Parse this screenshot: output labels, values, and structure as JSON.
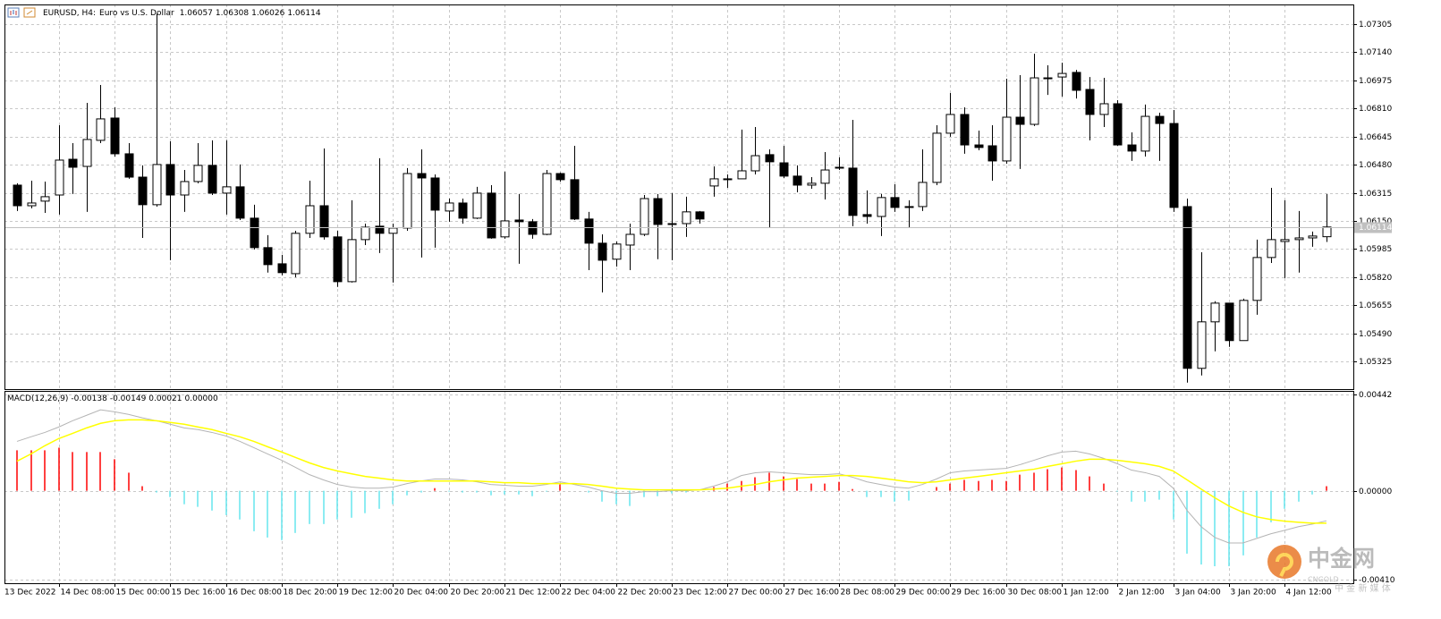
{
  "header": {
    "symbol": "EURUSD, H4:",
    "description": "Euro vs U.S. Dollar"
  },
  "chart_data": [
    {
      "type": "candlestick",
      "start_label": "13 Dec 2022",
      "categories": [
        null,
        null,
        null,
        "14 Dec 08:00",
        null,
        null,
        null,
        "15 Dec 00:00",
        null,
        null,
        null,
        "15 Dec 16:00",
        null,
        null,
        null,
        "16 Dec 08:00",
        null,
        null,
        null,
        "18 Dec 20:00",
        null,
        null,
        null,
        "19 Dec 12:00",
        null,
        null,
        null,
        "20 Dec 04:00",
        null,
        null,
        null,
        "20 Dec 20:00",
        null,
        null,
        null,
        "21 Dec 12:00",
        null,
        null,
        null,
        "22 Dec 04:00",
        null,
        null,
        null,
        "22 Dec 20:00",
        null,
        null,
        null,
        "23 Dec 12:00",
        null,
        null,
        null,
        "27 Dec 00:00",
        null,
        null,
        null,
        "27 Dec 16:00",
        null,
        null,
        null,
        "28 Dec 08:00",
        null,
        null,
        null,
        "29 Dec 00:00",
        null,
        null,
        null,
        "29 Dec 16:00",
        null,
        null,
        null,
        "30 Dec 08:00",
        null,
        null,
        null,
        "1 Jan 12:00",
        null,
        null,
        null,
        "2 Jan 12:00",
        null,
        null,
        null,
        "3 Jan 04:00",
        null,
        null,
        null,
        "3 Jan 20:00",
        null,
        null,
        null,
        "4 Jan 12:00",
        null,
        null,
        null
      ],
      "open": [
        1.0636,
        1.06239,
        1.06266,
        1.06302,
        1.06512,
        1.0647,
        1.06623,
        1.06754,
        1.06544,
        1.06407,
        1.06245,
        1.06481,
        1.06302,
        1.06381,
        1.06476,
        1.06313,
        1.0635,
        1.06166,
        1.05993,
        1.05898,
        1.0584,
        1.06077,
        1.06239,
        1.06056,
        1.05793,
        1.0604,
        1.06119,
        1.06077,
        1.06108,
        1.06428,
        1.06402,
        1.06208,
        1.06255,
        1.06166,
        1.06313,
        1.06056,
        1.06155,
        1.06145,
        1.06071,
        1.06428,
        1.06392,
        1.06161,
        1.06019,
        1.05925,
        1.06008,
        1.06071,
        1.06281,
        1.06129,
        1.06134,
        1.06203,
        1.06355,
        1.06397,
        1.06397,
        1.06444,
        1.06539,
        1.06491,
        1.06413,
        1.0636,
        1.06371,
        1.06465,
        1.0646,
        1.06187,
        1.06176,
        1.06287,
        1.06229,
        1.06234,
        1.06376,
        1.06665,
        1.06775,
        1.06596,
        1.06591,
        1.06502,
        1.06759,
        1.06717,
        1.0699,
        1.06995,
        1.07022,
        1.06922,
        1.06775,
        1.06838,
        1.06596,
        1.0656,
        1.06764,
        1.06722,
        1.06234,
        1.05284,
        1.05557,
        1.05667,
        1.05447,
        1.05683,
        1.05935,
        1.06029,
        1.0604,
        1.0605,
        1.06057
      ],
      "high": [
        1.06371,
        1.06386,
        1.06381,
        1.06712,
        1.06607,
        1.06843,
        1.06948,
        1.06817,
        1.06607,
        1.06476,
        1.07368,
        1.06617,
        1.06449,
        1.06607,
        1.06623,
        1.06623,
        1.06481,
        1.06245,
        1.06066,
        1.05951,
        1.06092,
        1.06386,
        1.06575,
        1.06092,
        1.06271,
        1.06134,
        1.06518,
        1.06134,
        1.0646,
        1.0657,
        1.06423,
        1.06281,
        1.06281,
        1.0635,
        1.0636,
        1.06439,
        1.06308,
        1.06161,
        1.06449,
        1.06434,
        1.06591,
        1.06203,
        1.06071,
        1.06029,
        1.06134,
        1.06302,
        1.06308,
        1.06313,
        1.06292,
        1.06208,
        1.0647,
        1.06423,
        1.06686,
        1.06701,
        1.0657,
        1.06591,
        1.06476,
        1.06407,
        1.06554,
        1.06523,
        1.06743,
        1.06329,
        1.06308,
        1.06365,
        1.06271,
        1.0657,
        1.06712,
        1.06901,
        1.06817,
        1.0668,
        1.06712,
        1.06985,
        1.07006,
        1.07132,
        1.07064,
        1.07079,
        1.07037,
        1.06995,
        1.0699,
        1.06859,
        1.0667,
        1.06833,
        1.06785,
        1.06801,
        1.06281,
        1.05966,
        1.05678,
        1.05667,
        1.05693,
        1.0604,
        1.06344,
        1.06271,
        1.06208,
        1.06087,
        1.06308
      ],
      "low": [
        1.06208,
        1.06224,
        1.06197,
        1.06187,
        1.06308,
        1.06203,
        1.06607,
        1.06528,
        1.06397,
        1.0605,
        1.06234,
        1.05919,
        1.06203,
        1.06371,
        1.06302,
        1.06187,
        1.06155,
        1.05982,
        1.05846,
        1.0583,
        1.05819,
        1.0605,
        1.0604,
        1.05762,
        1.05788,
        1.06008,
        1.05961,
        1.05788,
        1.06092,
        1.05935,
        1.05993,
        1.06145,
        1.06134,
        1.06161,
        1.06045,
        1.06045,
        1.05898,
        1.06045,
        1.06066,
        1.06381,
        1.06155,
        1.05861,
        1.0573,
        1.05882,
        1.05861,
        1.06061,
        1.05925,
        1.05919,
        1.06056,
        1.06134,
        1.06292,
        1.06344,
        1.06397,
        1.06423,
        1.06108,
        1.06402,
        1.06318,
        1.06339,
        1.06276,
        1.06449,
        1.06119,
        1.06134,
        1.06061,
        1.06203,
        1.06108,
        1.06208,
        1.0636,
        1.06644,
        1.06544,
        1.06565,
        1.06386,
        1.06486,
        1.06455,
        1.06707,
        1.0689,
        1.0688,
        1.06869,
        1.06623,
        1.06701,
        1.06591,
        1.06502,
        1.06528,
        1.06502,
        1.06203,
        1.052,
        1.05242,
        1.05384,
        1.0541,
        1.05447,
        1.05599,
        1.05903,
        1.05814,
        1.05846,
        1.05998,
        1.06026
      ],
      "close": [
        1.06239,
        1.06255,
        1.06292,
        1.06507,
        1.06465,
        1.06628,
        1.06749,
        1.06544,
        1.06407,
        1.06245,
        1.06481,
        1.06302,
        1.06381,
        1.06476,
        1.06313,
        1.0635,
        1.06166,
        1.05993,
        1.05893,
        1.05846,
        1.06077,
        1.06239,
        1.06056,
        1.05793,
        1.0604,
        1.06113,
        1.06077,
        1.06108,
        1.06428,
        1.06402,
        1.06213,
        1.06255,
        1.06166,
        1.06313,
        1.0605,
        1.0615,
        1.06145,
        1.06071,
        1.06428,
        1.06392,
        1.06161,
        1.06019,
        1.05919,
        1.06014,
        1.06071,
        1.06281,
        1.06129,
        1.06134,
        1.06203,
        1.06161,
        1.06397,
        1.06392,
        1.06444,
        1.06533,
        1.06497,
        1.06413,
        1.0636,
        1.06371,
        1.06449,
        1.0646,
        1.06182,
        1.06176,
        1.06287,
        1.06229,
        1.06234,
        1.06376,
        1.06665,
        1.06775,
        1.06596,
        1.06581,
        1.06502,
        1.06759,
        1.06717,
        1.0699,
        1.06985,
        1.07016,
        1.06917,
        1.06775,
        1.06838,
        1.06596,
        1.0656,
        1.06764,
        1.06722,
        1.06229,
        1.05284,
        1.05557,
        1.05667,
        1.05447,
        1.05683,
        1.05935,
        1.0604,
        1.0604,
        1.0605,
        1.06061,
        1.06114
      ],
      "up_color": "#ffffff",
      "down_color": "#000000",
      "wick_color": "#000000",
      "ylim": [
        1.05162,
        1.07421
      ],
      "yticks": [
        1.07305,
        {
          "value": 1.0714,
          "label": "1.07140"
        },
        1.06975,
        {
          "value": 1.0681,
          "label": "1.06810"
        },
        1.06645,
        {
          "value": 1.0648,
          "label": "1.06480"
        },
        1.06315,
        {
          "value": 1.0615,
          "label": "1.06150"
        },
        1.05985,
        {
          "value": 1.0582,
          "label": "1.05820"
        },
        1.05655,
        {
          "value": 1.0549,
          "label": "1.05490"
        },
        1.05325
      ],
      "grid": true,
      "last_price_line": true
    },
    {
      "type": "macd",
      "title": "MACD(12,26,9)",
      "extra_label": "0.00000",
      "series": [
        {
          "color": "#b4b4b4",
          "values": [
            0.00227,
            0.00248,
            0.00268,
            0.00293,
            0.00322,
            0.00347,
            0.00372,
            0.00363,
            0.00351,
            0.00335,
            0.00322,
            0.00306,
            0.00289,
            0.00281,
            0.00268,
            0.00252,
            0.00227,
            0.00198,
            0.00169,
            0.0014,
            0.00107,
            0.00074,
            0.0005,
            0.00029,
            0.00017,
            0.00012,
            0.00012,
            0.00017,
            0.00033,
            0.00045,
            0.00054,
            0.00054,
            0.0005,
            0.00041,
            0.00029,
            0.00025,
            0.00021,
            0.00021,
            0.00029,
            0.00041,
            0.00029,
            0.00017,
            0,
            -0.00012,
            -0.00012,
            -4e-05,
            -4e-05,
            0,
            0,
            4e-05,
            0.00021,
            0.00041,
            0.0007,
            0.00083,
            0.00087,
            0.00083,
            0.00078,
            0.00074,
            0.00074,
            0.00078,
            0.00062,
            0.00041,
            0.00029,
            0.00017,
            0.00012,
            0.00029,
            0.00054,
            0.00083,
            0.00091,
            0.00095,
            0.00099,
            0.00103,
            0.0012,
            0.0014,
            0.00161,
            0.00178,
            0.00182,
            0.00169,
            0.00149,
            0.00124,
            0.00095,
            0.00083,
            0.00066,
            0.00012,
            -0.00091,
            -0.00165,
            -0.00215,
            -0.0024,
            -0.0024,
            -0.00219,
            -0.00198,
            -0.00182,
            -0.00165,
            -0.00153,
            -0.00138
          ]
        },
        {
          "color": "#ffff00",
          "values": [
            0.00136,
            0.00169,
            0.00207,
            0.0024,
            0.00264,
            0.00289,
            0.0031,
            0.00322,
            0.00326,
            0.00326,
            0.00322,
            0.00314,
            0.00306,
            0.00293,
            0.00281,
            0.00264,
            0.00248,
            0.00227,
            0.00202,
            0.00178,
            0.00153,
            0.00128,
            0.00107,
            0.00091,
            0.00078,
            0.00066,
            0.00058,
            0.0005,
            0.00045,
            0.00045,
            0.00045,
            0.00045,
            0.00045,
            0.00045,
            0.00041,
            0.00037,
            0.00037,
            0.00033,
            0.00033,
            0.00033,
            0.00033,
            0.00029,
            0.00021,
            0.00012,
            8e-05,
            4e-05,
            4e-05,
            4e-05,
            4e-05,
            4e-05,
            8e-05,
            0.00012,
            0.00021,
            0.00029,
            0.00041,
            0.0005,
            0.00058,
            0.00062,
            0.00066,
            0.0007,
            0.0007,
            0.00066,
            0.00058,
            0.0005,
            0.00041,
            0.00037,
            0.00041,
            0.0005,
            0.00058,
            0.00066,
            0.00074,
            0.00083,
            0.00091,
            0.00099,
            0.00112,
            0.00124,
            0.00136,
            0.00145,
            0.00145,
            0.0014,
            0.00132,
            0.00124,
            0.00112,
            0.00091,
            0.0005,
            8e-05,
            -0.00033,
            -0.0007,
            -0.00099,
            -0.0012,
            -0.00132,
            -0.0014,
            -0.00145,
            -0.00149,
            -0.00149
          ]
        }
      ],
      "histogram": {
        "up_color": "#ff0000",
        "down_color": "#66e6ee",
        "values": [
          0.00186,
          0.00186,
          0.00186,
          0.00198,
          0.00178,
          0.00178,
          0.00178,
          0.00145,
          0.00083,
          0.00021,
          -8e-05,
          -0.00029,
          -0.00062,
          -0.00074,
          -0.00091,
          -0.00112,
          -0.00132,
          -0.00186,
          -0.00215,
          -0.00227,
          -0.00194,
          -0.00153,
          -0.00153,
          -0.00132,
          -0.00124,
          -0.00103,
          -0.00083,
          -0.00062,
          -0.00021,
          -8e-05,
          0.00012,
          -4e-05,
          -8e-05,
          -8e-05,
          -0.00021,
          -0.00017,
          -0.00017,
          -0.00025,
          -4e-05,
          0.00029,
          0,
          -8e-05,
          -0.0005,
          -0.00062,
          -0.0007,
          -0.00029,
          -0.00025,
          -0.00012,
          -8e-05,
          0,
          0.00017,
          0.00033,
          0.00045,
          0.00062,
          0.00083,
          0.00066,
          0.00054,
          0.00033,
          0.00033,
          0.00041,
          8e-05,
          -0.00029,
          -0.00029,
          -0.0005,
          -0.00045,
          0,
          0.00017,
          0.00033,
          0.0005,
          0.00045,
          0.0005,
          0.00045,
          0.00074,
          0.00083,
          0.00099,
          0.00107,
          0.00095,
          0.00066,
          0.00033,
          -4e-05,
          -0.0005,
          -0.0005,
          -0.00041,
          -0.00132,
          -0.00289,
          -0.00339,
          -0.00347,
          -0.00347,
          -0.00297,
          -0.00215,
          -0.00145,
          -0.00083,
          -0.0005,
          -0.00017,
          0.00021
        ]
      },
      "ylim": [
        -0.00425,
        0.00459
      ],
      "yticks": [
        0.00442,
        {
          "value": 0,
          "label": "0.00000"
        },
        {
          "value": -0.0041,
          "label": "-0.00410"
        }
      ],
      "grid": true
    }
  ],
  "watermark": {
    "name": "中金网",
    "site": "CNGOLD",
    "slogan": "中 金 新 媒 体"
  }
}
